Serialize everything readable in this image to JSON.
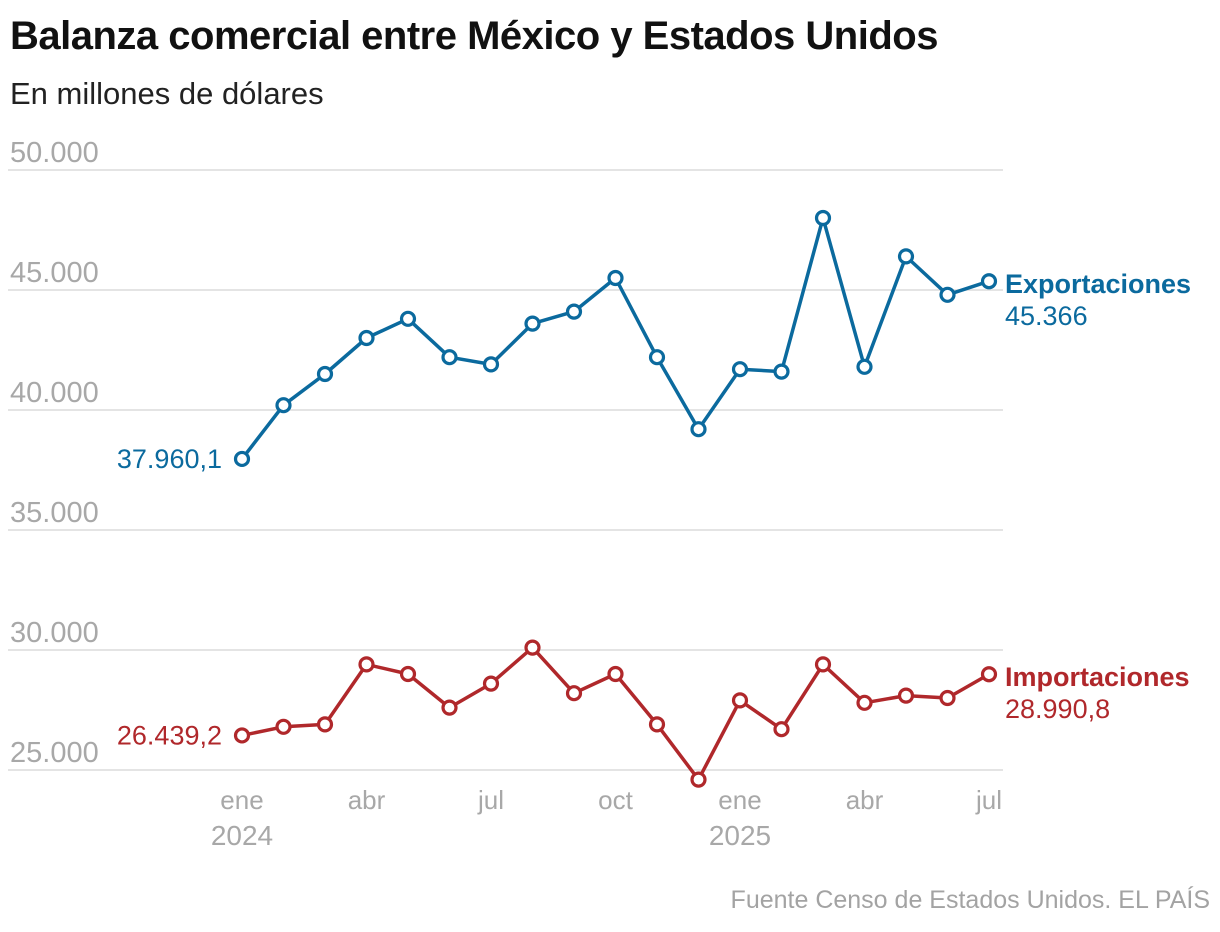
{
  "title": "Balanza comercial entre México y Estados Unidos",
  "subtitle": "En millones de dólares",
  "source": "Fuente Censo de Estados Unidos. EL PAÍS",
  "chart_data": {
    "type": "line",
    "title": "Balanza comercial entre México y Estados Unidos",
    "subtitle": "En millones de dólares",
    "xlabel": "",
    "ylabel": "",
    "ylim": [
      25000,
      50000
    ],
    "grid": true,
    "y_ticks": [
      {
        "value": 50000,
        "label": "50.000"
      },
      {
        "value": 45000,
        "label": "45.000"
      },
      {
        "value": 40000,
        "label": "40.000"
      },
      {
        "value": 35000,
        "label": "35.000"
      },
      {
        "value": 30000,
        "label": "30.000"
      },
      {
        "value": 25000,
        "label": "25.000"
      }
    ],
    "x": [
      "2024-01",
      "2024-02",
      "2024-03",
      "2024-04",
      "2024-05",
      "2024-06",
      "2024-07",
      "2024-08",
      "2024-09",
      "2024-10",
      "2024-11",
      "2024-12",
      "2025-01",
      "2025-02",
      "2025-03",
      "2025-04",
      "2025-05",
      "2025-06",
      "2025-07"
    ],
    "x_ticks": [
      {
        "index": 0,
        "label": "ene",
        "year": "2024"
      },
      {
        "index": 3,
        "label": "abr",
        "year": ""
      },
      {
        "index": 6,
        "label": "jul",
        "year": ""
      },
      {
        "index": 9,
        "label": "oct",
        "year": ""
      },
      {
        "index": 12,
        "label": "ene",
        "year": "2025"
      },
      {
        "index": 15,
        "label": "abr",
        "year": ""
      },
      {
        "index": 18,
        "label": "jul",
        "year": ""
      }
    ],
    "series": [
      {
        "name": "Exportaciones",
        "color": "#0b6a9e",
        "start_label": "37.960,1",
        "end_label": "45.366",
        "values": [
          37960.1,
          40200,
          41500,
          43000,
          43800,
          42200,
          41900,
          43600,
          44100,
          45500,
          42200,
          39200,
          41700,
          41600,
          48000,
          41800,
          46400,
          44800,
          45366
        ]
      },
      {
        "name": "Importaciones",
        "color": "#b0282b",
        "start_label": "26.439,2",
        "end_label": "28.990,8",
        "values": [
          26439.2,
          26800,
          26900,
          29400,
          29000,
          27600,
          28600,
          30100,
          28200,
          29000,
          26900,
          24600,
          27900,
          26700,
          29400,
          27800,
          28100,
          28000,
          28990.8
        ]
      }
    ]
  }
}
